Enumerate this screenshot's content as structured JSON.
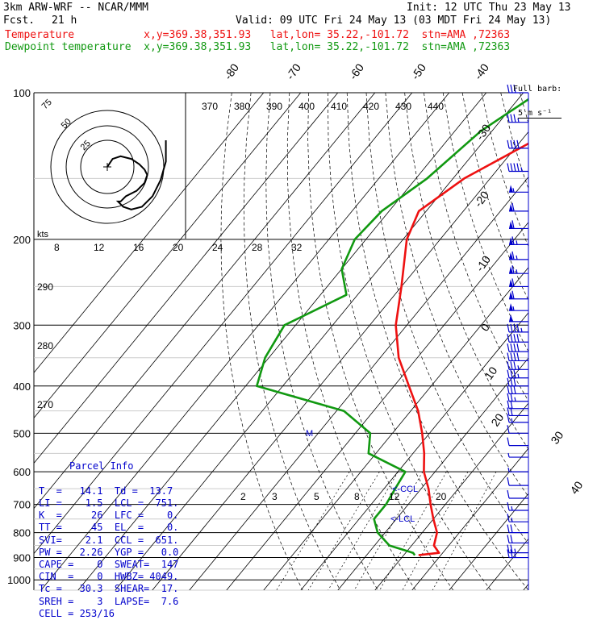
{
  "header": {
    "model": "3km ARW-WRF -- NCAR/MMM",
    "init": "Init: 12 UTC Thu 23 May 13",
    "fcst_label": "Fcst.",
    "fcst_value": "21 h",
    "valid": "Valid: 09 UTC Fri 24 May 13 (03 MDT Fri 24 May 13)",
    "temp_line": "Temperature           x,y=369.38,351.93   lat,lon= 35.22,-101.72  stn=AMA ,72363",
    "dew_line": "Dewpoint temperature  x,y=369.38,351.93   lat,lon= 35.22,-101.72  stn=AMA ,72363"
  },
  "legend": {
    "barb_title": "Full barb:",
    "barb_value": "5 m s⁻¹"
  },
  "colors": {
    "temperature": "#ee1111",
    "dewpoint": "#119911",
    "wind": "#0000cc",
    "grid": "#000000"
  },
  "chart_data": {
    "type": "line",
    "xlabel": "",
    "ylabel": "",
    "pressure_ticks": [
      "100",
      "200",
      "300",
      "400",
      "500",
      "600",
      "700",
      "800",
      "900",
      "1000"
    ],
    "isotherm_labels": [
      "-80",
      "-70",
      "-60",
      "-50",
      "-40",
      "-30",
      "-20",
      "-10",
      "0",
      "10",
      "20",
      "30",
      "40"
    ],
    "theta_labels": [
      "370",
      "380",
      "390",
      "400",
      "410",
      "420",
      "430",
      "440"
    ],
    "theta_low_labels": [
      "290",
      "280",
      "270"
    ],
    "hodo_speed_labels": [
      "8",
      "12",
      "16",
      "20",
      "24",
      "28",
      "32"
    ],
    "hodo_units": "kts",
    "hodo_ring_labels": [
      "75",
      "50",
      "25"
    ],
    "mixing_ratio_labels": [
      "2",
      "3",
      "5",
      "8",
      "12",
      "20"
    ],
    "markers": {
      "ccl": "<-CCL",
      "lcl": "<-LCL",
      "m": "M"
    },
    "series": [
      {
        "name": "Temperature",
        "color": "#ee1111",
        "points": [
          [
            100,
            -31
          ],
          [
            120,
            -44
          ],
          [
            150,
            -57
          ],
          [
            175,
            -62
          ],
          [
            200,
            -59
          ],
          [
            250,
            -50
          ],
          [
            300,
            -43
          ],
          [
            350,
            -35
          ],
          [
            400,
            -26
          ],
          [
            450,
            -18
          ],
          [
            500,
            -12
          ],
          [
            550,
            -7
          ],
          [
            600,
            -3
          ],
          [
            650,
            2
          ],
          [
            700,
            6
          ],
          [
            750,
            10
          ],
          [
            800,
            14
          ],
          [
            850,
            16
          ],
          [
            880,
            19
          ],
          [
            890,
            14
          ]
        ]
      },
      {
        "name": "Dewpoint temperature",
        "color": "#119911",
        "points": [
          [
            100,
            -56
          ],
          [
            120,
            -63
          ],
          [
            150,
            -67
          ],
          [
            175,
            -72
          ],
          [
            200,
            -73
          ],
          [
            230,
            -70
          ],
          [
            260,
            -63
          ],
          [
            300,
            -73
          ],
          [
            350,
            -71
          ],
          [
            400,
            -67
          ],
          [
            450,
            -38
          ],
          [
            500,
            -26
          ],
          [
            550,
            -22
          ],
          [
            600,
            -8
          ],
          [
            650,
            -7
          ],
          [
            700,
            -6
          ],
          [
            750,
            -6
          ],
          [
            800,
            -2
          ],
          [
            850,
            4
          ],
          [
            880,
            12
          ],
          [
            890,
            13
          ]
        ]
      }
    ],
    "wind_barbs": {
      "pressures": [
        100,
        115,
        130,
        145,
        160,
        175,
        190,
        205,
        220,
        235,
        250,
        265,
        280,
        295,
        310,
        325,
        340,
        355,
        370,
        385,
        400,
        415,
        430,
        445,
        460,
        475,
        500,
        530,
        560,
        600,
        640,
        680,
        720,
        760,
        800,
        840,
        880,
        900
      ],
      "speeds_ms": [
        16,
        18,
        20,
        24,
        28,
        30,
        32,
        34,
        34,
        34,
        32,
        30,
        28,
        26,
        24,
        22,
        21,
        20,
        19,
        18,
        16,
        15,
        13,
        12,
        10,
        8,
        6,
        5,
        4,
        4,
        5,
        6,
        8,
        9,
        10,
        12,
        14,
        14
      ]
    },
    "hodograph": {
      "u": [
        0,
        2,
        5,
        9,
        12,
        14,
        15,
        14,
        11,
        7,
        5,
        4,
        6,
        9,
        13,
        17,
        20,
        22,
        22
      ],
      "v": [
        0,
        3,
        4,
        3,
        1,
        -1,
        -3,
        -6,
        -9,
        -11,
        -13,
        -13,
        -15,
        -16,
        -15,
        -11,
        -5,
        2,
        10
      ]
    }
  },
  "parcel_info": {
    "title": "Parcel Info",
    "rows": [
      "T  =   14.1  Td =  13.7",
      "LI =    1.5  LCL =  751.",
      "K  =     26  LFC =    0.",
      "TT =     45  EL  =    0.",
      "SVI=    2.1  CCL =  651.",
      "PW =   2.26  YGP =   0.0",
      "CAPE =    0  SWEAT=  147",
      "CIN  =    0  HWBZ= 4049.",
      "Tc =   30.3  SHEAR=  17.",
      "SREH =    3  LAPSE=  7.6",
      "CELL = 253/16"
    ]
  }
}
